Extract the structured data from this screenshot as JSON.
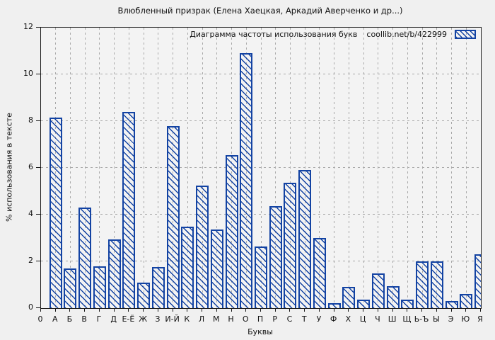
{
  "title": "Влюбленный призрак (Елена Хаецкая, Аркадий Аверченко и др...)",
  "legend": {
    "label": "Диаграмма частоты использования букв",
    "source": "coollib.net/b/422999"
  },
  "axes": {
    "y_label": "% использования в тексте",
    "x_label": "Буквы",
    "origin_label": "0",
    "y_ticks": [
      0,
      2,
      4,
      6,
      8,
      10,
      12
    ]
  },
  "colors": {
    "bar": "#1343a3",
    "grid": "#a9a9a9",
    "axis": "#1a1a1a",
    "background": "#f0f0f0",
    "plot_background": "#f3f3f3",
    "text": "#111111"
  },
  "chart_data": {
    "type": "bar",
    "title": "Влюбленный призрак (Елена Хаецкая, Аркадий Аверченко и др...)",
    "subtitle": "Диаграмма частоты использования букв coollib.net/b/422999",
    "categories": [
      "А",
      "Б",
      "В",
      "Г",
      "Д",
      "Е-Ё",
      "Ж",
      "З",
      "И-Й",
      "К",
      "Л",
      "М",
      "Н",
      "О",
      "П",
      "Р",
      "С",
      "Т",
      "У",
      "Ф",
      "Х",
      "Ц",
      "Ч",
      "Ш",
      "Щ",
      "Ь-Ъ",
      "Ы",
      "Э",
      "Ю",
      "Я"
    ],
    "values": [
      8.15,
      1.7,
      4.3,
      1.8,
      2.95,
      8.4,
      1.1,
      1.75,
      7.8,
      3.5,
      5.25,
      3.35,
      6.55,
      10.9,
      2.65,
      4.35,
      5.35,
      5.9,
      3.0,
      0.2,
      0.9,
      0.35,
      1.5,
      0.95,
      0.35,
      2.0,
      2.0,
      0.3,
      0.6,
      2.3
    ],
    "xlabel": "Буквы",
    "ylabel": "% использования в тексте",
    "ylim": [
      0,
      12
    ],
    "ytick_step": 2,
    "grid": true,
    "legend_position": "top-right-inside",
    "bar_style": "hatched-diagonal",
    "last_bar_clipped_by_right_border": true
  }
}
